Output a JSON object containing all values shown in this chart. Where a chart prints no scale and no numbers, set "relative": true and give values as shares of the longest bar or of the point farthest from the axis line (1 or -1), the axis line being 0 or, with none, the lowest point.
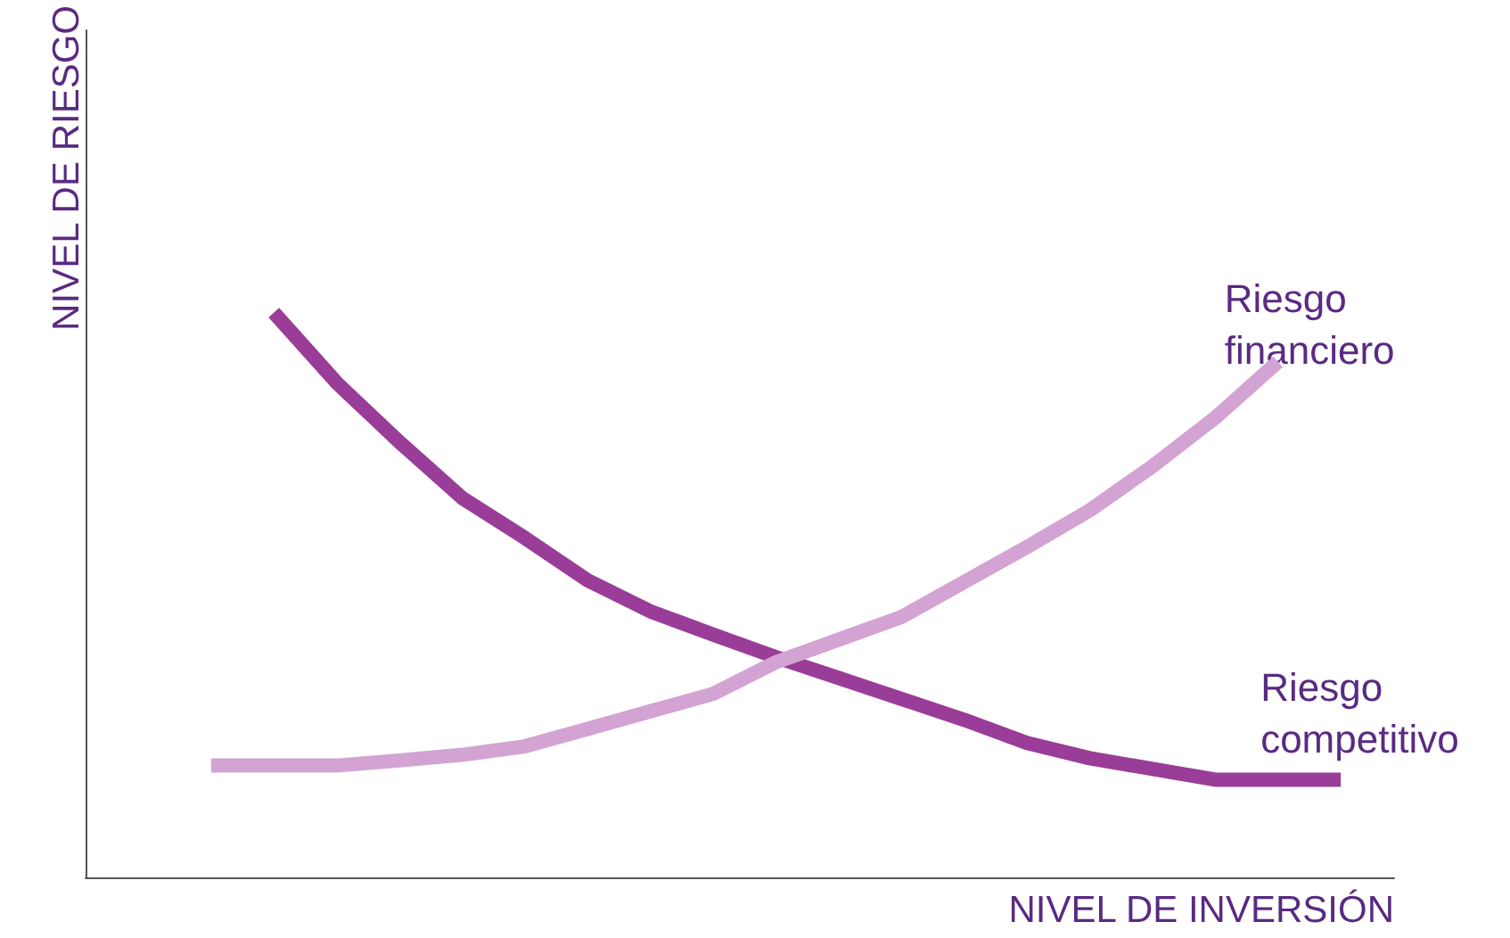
{
  "chart_data": {
    "type": "line",
    "relative": true,
    "xlabel": "NIVEL DE INVERSIÓN",
    "ylabel": "NIVEL DE RIESGO",
    "marker": "none",
    "line_style": "solid",
    "grid": false,
    "legend": false,
    "categories": [
      null,
      null,
      null,
      null,
      null,
      null,
      null,
      null,
      null,
      null,
      null,
      null,
      null,
      null,
      null,
      null,
      null,
      null,
      null
    ],
    "series": [
      {
        "name": "Riesgo competitivo",
        "color": "#993d99",
        "values": [
          null,
          1,
          0.876,
          0.771,
          0.672,
          0.601,
          0.526,
          0.471,
          0.43,
          0.39,
          0.353,
          0.316,
          0.279,
          0.238,
          0.211,
          0.192,
          0.173,
          0.173,
          0.173
        ]
      },
      {
        "name": "Riesgo financiero",
        "color": "#d3a3d3",
        "values": [
          0.198,
          0.198,
          0.198,
          0.207,
          0.217,
          0.232,
          0.263,
          0.294,
          0.325,
          0.381,
          0.421,
          0.461,
          0.523,
          0.585,
          0.65,
          0.728,
          0.814,
          0.913,
          null
        ]
      }
    ]
  }
}
